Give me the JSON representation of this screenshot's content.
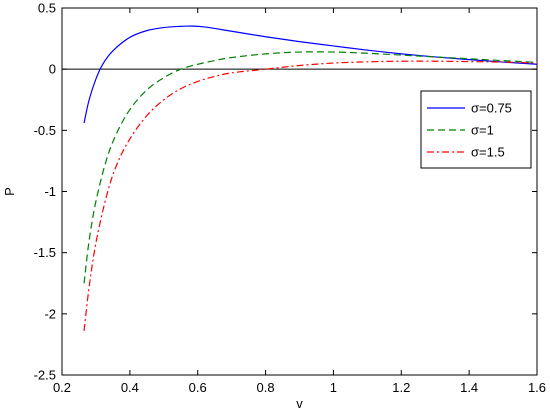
{
  "chart_data": {
    "type": "line",
    "title": "",
    "xlabel": "v",
    "ylabel": "P",
    "xlim": [
      0.2,
      1.6
    ],
    "ylim": [
      -2.5,
      0.5
    ],
    "xticks": [
      0.2,
      0.4,
      0.6,
      0.8,
      1.0,
      1.2,
      1.4,
      1.6
    ],
    "xtick_labels": [
      "0.2",
      "0.4",
      "0.6",
      "0.8",
      "1",
      "1.2",
      "1.4",
      "1.6"
    ],
    "yticks": [
      -2.5,
      -2.0,
      -1.5,
      -1.0,
      -0.5,
      0.0,
      0.5
    ],
    "ytick_labels": [
      "-2.5",
      "-2",
      "-1.5",
      "-1",
      "-0.5",
      "0",
      "0.5"
    ],
    "grid": false,
    "legend_position": "upper-right",
    "reference_line": {
      "y": 0,
      "color": "#000000"
    },
    "series": [
      {
        "name": "σ=0.75",
        "color": "#0000ff",
        "style": "solid",
        "x": [
          0.265,
          0.28,
          0.3,
          0.32,
          0.35,
          0.4,
          0.45,
          0.5,
          0.55,
          0.58,
          0.62,
          0.7,
          0.8,
          0.9,
          1.0,
          1.1,
          1.2,
          1.3,
          1.4,
          1.5,
          1.6
        ],
        "y": [
          -0.44,
          -0.25,
          -0.08,
          0.04,
          0.15,
          0.26,
          0.315,
          0.34,
          0.35,
          0.352,
          0.345,
          0.31,
          0.265,
          0.225,
          0.19,
          0.155,
          0.125,
          0.1,
          0.078,
          0.058,
          0.04
        ]
      },
      {
        "name": "σ=1",
        "color": "#008000",
        "style": "dashed",
        "x": [
          0.265,
          0.28,
          0.3,
          0.33,
          0.36,
          0.4,
          0.45,
          0.5,
          0.55,
          0.6,
          0.65,
          0.7,
          0.8,
          0.9,
          1.0,
          1.1,
          1.2,
          1.3,
          1.4,
          1.5,
          1.6
        ],
        "y": [
          -1.75,
          -1.4,
          -1.08,
          -0.75,
          -0.53,
          -0.33,
          -0.17,
          -0.07,
          0.0,
          0.04,
          0.07,
          0.095,
          0.125,
          0.14,
          0.14,
          0.13,
          0.115,
          0.1,
          0.085,
          0.07,
          0.055
        ]
      },
      {
        "name": "σ=1.5",
        "color": "#ff0000",
        "style": "dashdot",
        "x": [
          0.265,
          0.28,
          0.3,
          0.33,
          0.36,
          0.4,
          0.45,
          0.5,
          0.55,
          0.6,
          0.65,
          0.7,
          0.8,
          0.9,
          1.0,
          1.1,
          1.2,
          1.3,
          1.4,
          1.5,
          1.6
        ],
        "y": [
          -2.14,
          -1.78,
          -1.42,
          -1.05,
          -0.79,
          -0.57,
          -0.38,
          -0.25,
          -0.16,
          -0.1,
          -0.06,
          -0.03,
          0.0,
          0.03,
          0.05,
          0.06,
          0.065,
          0.065,
          0.062,
          0.058,
          0.05
        ]
      }
    ]
  }
}
